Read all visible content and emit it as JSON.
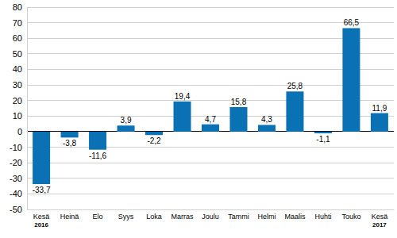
{
  "chart_data": {
    "type": "bar",
    "categories": [
      "Kesä 2016",
      "Heinä",
      "Elo",
      "Syys",
      "Loka",
      "Marras",
      "Joulu",
      "Tammi",
      "Helmi",
      "Maalis",
      "Huhti",
      "Touko",
      "Kesä 2017"
    ],
    "values": [
      -33.7,
      -3.8,
      -11.6,
      3.9,
      -2.2,
      19.4,
      4.7,
      15.8,
      4.3,
      25.8,
      -1.1,
      66.5,
      11.9
    ],
    "value_labels": [
      "-33,7",
      "-3,8",
      "-11,6",
      "3,9",
      "-2,2",
      "19,4",
      "4,7",
      "15,8",
      "4,3",
      "25,8",
      "-1,1",
      "66,5",
      "11,9"
    ],
    "color": "#0a71b4",
    "ylim": [
      -50,
      80
    ],
    "yticks": [
      -50,
      -40,
      -30,
      -20,
      -10,
      0,
      10,
      20,
      30,
      40,
      50,
      60,
      70,
      80
    ],
    "grid": true,
    "data_labels": true
  }
}
